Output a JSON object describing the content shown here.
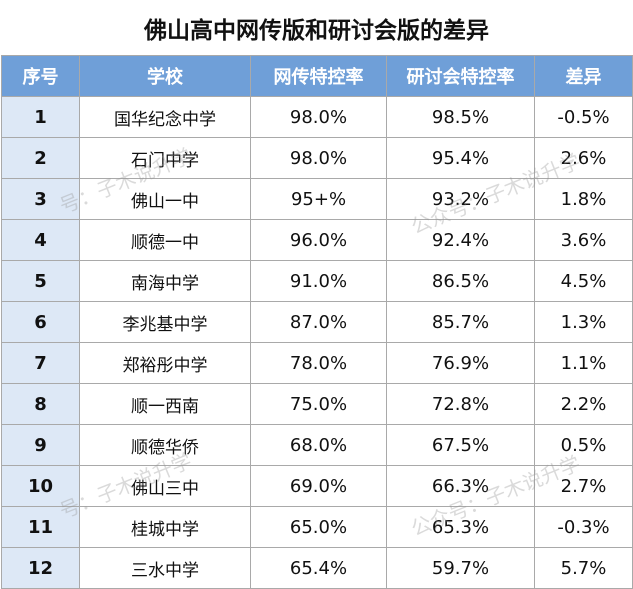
{
  "title": "佛山高中网传版和研讨会版的差异",
  "headers": [
    "序号",
    "学校",
    "网传特控率",
    "研讨会特控率",
    "差异"
  ],
  "rows": [
    [
      "1",
      "国华纪念中学",
      "98.0%",
      "98.5%",
      "-0.5%"
    ],
    [
      "2",
      "石门中学",
      "98.0%",
      "95.4%",
      "2.6%"
    ],
    [
      "3",
      "佛山一中",
      "95+%",
      "93.2%",
      "1.8%"
    ],
    [
      "4",
      "顺德一中",
      "96.0%",
      "92.4%",
      "3.6%"
    ],
    [
      "5",
      "南海中学",
      "91.0%",
      "86.5%",
      "4.5%"
    ],
    [
      "6",
      "李兆基中学",
      "87.0%",
      "85.7%",
      "1.3%"
    ],
    [
      "7",
      "郑裕彤中学",
      "78.0%",
      "76.9%",
      "1.1%"
    ],
    [
      "8",
      "顺一西南",
      "75.0%",
      "72.8%",
      "2.2%"
    ],
    [
      "9",
      "顺德华侨",
      "68.0%",
      "67.5%",
      "0.5%"
    ],
    [
      "10",
      "佛山三中",
      "69.0%",
      "66.3%",
      "2.7%"
    ],
    [
      "11",
      "桂城中学",
      "65.0%",
      "65.3%",
      "-0.3%"
    ],
    [
      "12",
      "三水中学",
      "65.4%",
      "59.7%",
      "5.7%"
    ]
  ],
  "watermarks": [
    "号：子木说升学",
    "公众号：子木说升学",
    "号：子木说升学",
    "公众号：子木说升学"
  ]
}
